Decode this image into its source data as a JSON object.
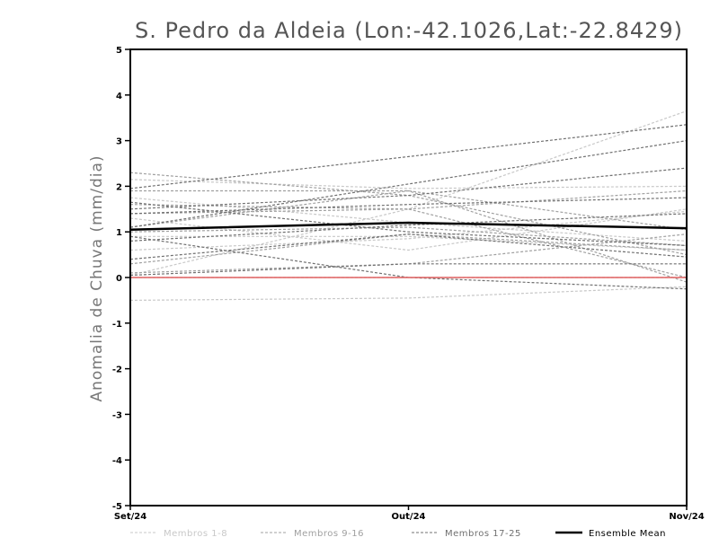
{
  "chart_data": {
    "type": "line",
    "title": "S. Pedro da Aldeia (Lon:-42.1026,Lat:-22.8429)",
    "xlabel": "",
    "ylabel": "Anomalia de Chuva (mm/dia)",
    "categories": [
      "Set/24",
      "Out/24",
      "Nov/24"
    ],
    "ylim": [
      -5,
      5
    ],
    "yticks": [
      "5",
      "4",
      "3",
      "2",
      "1",
      "0",
      "-1",
      "-2",
      "-3",
      "-4",
      "-5"
    ],
    "zero_line_color": "#e06060",
    "groups": [
      {
        "name": "Membros 1-8",
        "color": "#c8c8c8",
        "series": [
          [
            0.05,
            1.5,
            3.65
          ],
          [
            2.15,
            1.95,
            2.0
          ],
          [
            -0.5,
            -0.45,
            -0.2
          ],
          [
            0.9,
            0.9,
            0.6
          ],
          [
            1.3,
            0.6,
            1.5
          ],
          [
            0.0,
            0.0,
            0.0
          ],
          [
            1.75,
            1.2,
            0.8
          ],
          [
            0.6,
            0.85,
            1.45
          ]
        ]
      },
      {
        "name": "Membros 9-16",
        "color": "#a0a0a0",
        "series": [
          [
            2.3,
            1.8,
            0.5
          ],
          [
            1.4,
            1.5,
            1.9
          ],
          [
            1.0,
            1.1,
            0.7
          ],
          [
            0.3,
            0.95,
            0.6
          ],
          [
            0.1,
            0.3,
            0.95
          ],
          [
            1.9,
            1.9,
            1.05
          ],
          [
            1.6,
            1.5,
            0.0
          ],
          [
            1.1,
            1.9,
            -0.1
          ]
        ]
      },
      {
        "name": "Membros 17-25",
        "color": "#707070",
        "series": [
          [
            1.95,
            2.65,
            3.35
          ],
          [
            1.1,
            2.05,
            3.0
          ],
          [
            1.5,
            1.8,
            2.4
          ],
          [
            1.4,
            1.6,
            1.75
          ],
          [
            0.8,
            1.15,
            1.4
          ],
          [
            0.4,
            0.95,
            0.45
          ],
          [
            1.65,
            1.0,
            0.7
          ],
          [
            0.05,
            0.3,
            0.3
          ],
          [
            0.9,
            0.0,
            -0.25
          ]
        ]
      }
    ],
    "ensemble_mean": {
      "name": "Ensemble Mean",
      "color": "#000000",
      "values": [
        1.05,
        1.2,
        1.08
      ]
    }
  }
}
